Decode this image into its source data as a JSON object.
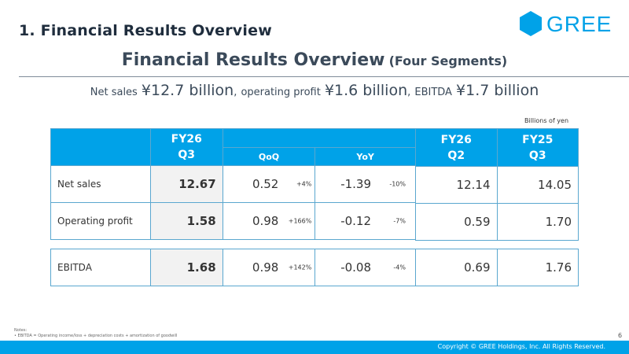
{
  "section_title": "1. Financial Results Overview",
  "logo": {
    "text": "GREE",
    "color": "#00a2e8",
    "icon": "hexagon-icon"
  },
  "main_title": {
    "text": "Financial Results Overview",
    "suffix": "(Four Segments)"
  },
  "summary": {
    "net_sales_label": "Net sales",
    "net_sales_value": "¥12.7 billion",
    "sep1": ",",
    "op_label": "operating profit",
    "op_value": "¥1.6 billion",
    "sep2": ",",
    "ebitda_label": "EBITDA",
    "ebitda_value": "¥1.7 billion"
  },
  "units": "Billions of yen",
  "table": {
    "headers": {
      "current_line1": "FY26",
      "current_line2": "Q3",
      "qoq": "QoQ",
      "yoy": "YoY",
      "prev_q_line1": "FY26",
      "prev_q_line2": "Q2",
      "prev_y_line1": "FY25",
      "prev_y_line2": "Q3"
    },
    "rows": [
      {
        "label": "Net sales",
        "current": "12.67",
        "qoq": "0.52",
        "qoq_pct": "+4%",
        "yoy": "-1.39",
        "yoy_pct": "-10%",
        "prev_q": "12.14",
        "prev_y": "14.05"
      },
      {
        "label": "Operating profit",
        "current": "1.58",
        "qoq": "0.98",
        "qoq_pct": "+166%",
        "yoy": "-0.12",
        "yoy_pct": "-7%",
        "prev_q": "0.59",
        "prev_y": "1.70"
      },
      {
        "label": "EBITDA",
        "current": "1.68",
        "qoq": "0.98",
        "qoq_pct": "+142%",
        "yoy": "-0.08",
        "yoy_pct": "-4%",
        "prev_q": "0.69",
        "prev_y": "1.76"
      }
    ]
  },
  "notes": {
    "heading": "Notes:",
    "items": [
      "EBITDA = Operating income/loss + depreciation costs + amortization of goodwill"
    ]
  },
  "page_number": "6",
  "footer": {
    "copyright": "Copyright © GREE Holdings, Inc. All Rights Reserved."
  },
  "colors": {
    "accent": "#00a2e8",
    "header_text": "#ffffff",
    "current_bg": "#f2f2f2"
  }
}
